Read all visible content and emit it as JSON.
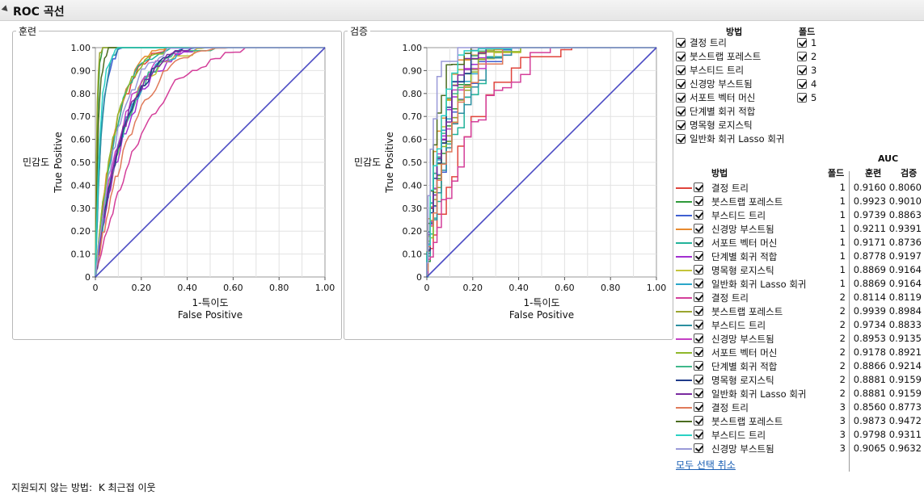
{
  "title": "ROC 곡선",
  "panels": [
    {
      "title": "훈련",
      "ylabel": "민감도",
      "ylabel2": "True Positive",
      "xlabel": "1-특이도",
      "xlabel2": "False Positive"
    },
    {
      "title": "검증",
      "ylabel": "민감도",
      "ylabel2": "True Positive",
      "xlabel": "1-특이도",
      "xlabel2": "False Positive"
    }
  ],
  "chart_data": {
    "type": "line",
    "x_ticks": [
      "0",
      "0.20",
      "0.40",
      "0.60",
      "0.80",
      "1.00"
    ],
    "y_ticks": [
      "0",
      "0.10",
      "0.20",
      "0.30",
      "0.40",
      "0.50",
      "0.60",
      "0.70",
      "0.80",
      "0.90",
      "1.00"
    ],
    "xlim": [
      0,
      1
    ],
    "ylim": [
      0,
      1
    ],
    "grid": true,
    "diagonal": true
  },
  "method_legend": {
    "header": "방법",
    "items": [
      {
        "label": "결정 트리",
        "color": "#e0443c"
      },
      {
        "label": "붓스트랩 포레스트",
        "color": "#2e9a3a"
      },
      {
        "label": "부스티드 트리",
        "color": "#3f5fd1"
      },
      {
        "label": "신경망 부스트됨",
        "color": "#e88a2e"
      },
      {
        "label": "서포트 벡터 머신",
        "color": "#22b39a"
      },
      {
        "label": "단계별 회귀 적합",
        "color": "#a22fd1"
      },
      {
        "label": "명목형 로지스틱",
        "color": "#b8b82a"
      },
      {
        "label": "일반화 회귀 Lasso 회귀",
        "color": "#2aa6c9"
      }
    ]
  },
  "fold_legend": {
    "header": "폴드",
    "items": [
      "1",
      "2",
      "3",
      "4",
      "5"
    ]
  },
  "auc_table": {
    "auc_header": "AUC",
    "col_method": "방법",
    "col_fold": "폴드",
    "col_train": "훈련",
    "col_valid": "검증",
    "rows": [
      {
        "method": "결정 트리",
        "fold": "1",
        "train": "0.9160",
        "valid": "0.8060",
        "color": "#e0443c"
      },
      {
        "method": "붓스트랩 포레스트",
        "fold": "1",
        "train": "0.9923",
        "valid": "0.9010",
        "color": "#2e9a3a"
      },
      {
        "method": "부스티드 트리",
        "fold": "1",
        "train": "0.9739",
        "valid": "0.8863",
        "color": "#3f5fd1"
      },
      {
        "method": "신경망 부스트됨",
        "fold": "1",
        "train": "0.9211",
        "valid": "0.9391",
        "color": "#e88a2e"
      },
      {
        "method": "서포트 벡터 머신",
        "fold": "1",
        "train": "0.9171",
        "valid": "0.8736",
        "color": "#22b39a"
      },
      {
        "method": "단계별 회귀 적합",
        "fold": "1",
        "train": "0.8778",
        "valid": "0.9197",
        "color": "#a22fd1"
      },
      {
        "method": "명목형 로지스틱",
        "fold": "1",
        "train": "0.8869",
        "valid": "0.9164",
        "color": "#c4c43a"
      },
      {
        "method": "일반화 회귀 Lasso 회귀",
        "fold": "1",
        "train": "0.8869",
        "valid": "0.9164",
        "color": "#2aa6c9"
      },
      {
        "method": "결정 트리",
        "fold": "2",
        "train": "0.8114",
        "valid": "0.8119",
        "color": "#d43f9a"
      },
      {
        "method": "붓스트랩 포레스트",
        "fold": "2",
        "train": "0.9939",
        "valid": "0.8984",
        "color": "#9aa52e"
      },
      {
        "method": "부스티드 트리",
        "fold": "2",
        "train": "0.9734",
        "valid": "0.8833",
        "color": "#2b8fa0"
      },
      {
        "method": "신경망 부스트됨",
        "fold": "2",
        "train": "0.8953",
        "valid": "0.9135",
        "color": "#c43fc4"
      },
      {
        "method": "서포트 벡터 머신",
        "fold": "2",
        "train": "0.9178",
        "valid": "0.8921",
        "color": "#8fb82a"
      },
      {
        "method": "단계별 회귀 적합",
        "fold": "2",
        "train": "0.8866",
        "valid": "0.9214",
        "color": "#3fb88a"
      },
      {
        "method": "명목형 로지스틱",
        "fold": "2",
        "train": "0.8881",
        "valid": "0.9159",
        "color": "#1f3a8a"
      },
      {
        "method": "일반화 회귀 Lasso 회귀",
        "fold": "2",
        "train": "0.8881",
        "valid": "0.9159",
        "color": "#7a2aa0"
      },
      {
        "method": "결정 트리",
        "fold": "3",
        "train": "0.8560",
        "valid": "0.8773",
        "color": "#e07a5a"
      },
      {
        "method": "붓스트랩 포레스트",
        "fold": "3",
        "train": "0.9873",
        "valid": "0.9472",
        "color": "#4a6b1f"
      },
      {
        "method": "부스티드 트리",
        "fold": "3",
        "train": "0.9798",
        "valid": "0.9311",
        "color": "#2ad1c4"
      },
      {
        "method": "신경망 부스트됨",
        "fold": "3",
        "train": "0.9065",
        "valid": "0.9632",
        "color": "#9a9ad8"
      }
    ]
  },
  "deselect_label": "모두 선택 취소",
  "footer": {
    "label": "지원되지 않는 방법:",
    "value": "K 최근접 이웃"
  }
}
